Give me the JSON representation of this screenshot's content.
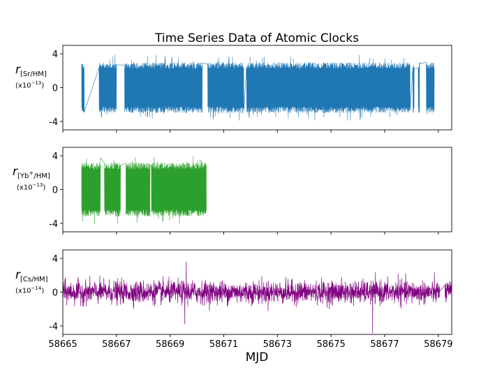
{
  "title": "Time Series Data of Atomic Clocks",
  "x_label": "MJD",
  "colors": {
    "sr": "#1f77b4",
    "yb": "#2ca02c",
    "cs": "#800080"
  },
  "panels": [
    {
      "id": "sr",
      "label_main": "r",
      "label_sub": "[Sr/HM]",
      "scale_base": "(x10",
      "scale_exp": "−13",
      "scale_close": ")"
    },
    {
      "id": "yb",
      "label_main": "r",
      "label_sub_a": "[Yb",
      "label_sub_sup": "+",
      "label_sub_b": "/HM]",
      "scale_base": "(x10",
      "scale_exp": "−13",
      "scale_close": ")"
    },
    {
      "id": "cs",
      "label_main": "r",
      "label_sub": "[Cs/HM]",
      "scale_base": "(x10",
      "scale_exp": "−14",
      "scale_close": ")"
    }
  ],
  "chart_data": [
    {
      "type": "line",
      "series": [
        {
          "color": "#1f77b4"
        }
      ],
      "xlim": [
        58665,
        58679.5
      ],
      "ylim": [
        -5,
        5
      ],
      "x_ticks": [
        58665,
        58667,
        58669,
        58671,
        58673,
        58675,
        58677,
        58679
      ],
      "y_ticks": [
        -4,
        0,
        4
      ],
      "y_tick_labels": [
        "-4",
        "0",
        "4"
      ],
      "amplitude": 3.0,
      "segments": [
        [
          58665.7,
          58665.8
        ],
        [
          58666.35,
          58667.0
        ],
        [
          58667.3,
          58670.2
        ],
        [
          58670.4,
          58671.75
        ],
        [
          58671.85,
          58677.95
        ],
        [
          58678.05,
          58678.1
        ],
        [
          58678.25,
          58678.3
        ],
        [
          58678.55,
          58678.85
        ]
      ]
    },
    {
      "type": "line",
      "series": [
        {
          "color": "#2ca02c"
        }
      ],
      "xlim": [
        58665,
        58679.5
      ],
      "ylim": [
        -5,
        5
      ],
      "x_ticks": [
        58665,
        58667,
        58669,
        58671,
        58673,
        58675,
        58677,
        58679
      ],
      "y_ticks": [
        -4,
        0,
        4
      ],
      "y_tick_labels": [
        "-4",
        "0",
        "4"
      ],
      "amplitude": 3.2,
      "segments": [
        [
          58665.7,
          58666.4
        ],
        [
          58666.55,
          58667.15
        ],
        [
          58667.35,
          58668.25
        ],
        [
          58668.3,
          58670.35
        ]
      ]
    },
    {
      "type": "line",
      "series": [
        {
          "color": "#800080"
        }
      ],
      "xlim": [
        58665,
        58679.5
      ],
      "ylim": [
        -5,
        5
      ],
      "x_ticks": [
        58665,
        58667,
        58669,
        58671,
        58673,
        58675,
        58677,
        58679
      ],
      "x_tick_labels": [
        "58665",
        "58667",
        "58669",
        "58671",
        "58673",
        "58675",
        "58677",
        "58679"
      ],
      "y_ticks": [
        -4,
        0,
        4
      ],
      "y_tick_labels": [
        "-4",
        "0",
        "4"
      ],
      "amplitude": 1.2,
      "segments": [
        [
          58665.0,
          58679.05
        ],
        [
          58679.25,
          58679.5
        ]
      ],
      "spikes": [
        [
          58669.6,
          3.6
        ],
        [
          58669.55,
          -3.8
        ],
        [
          58676.55,
          -4.9
        ],
        [
          58677.5,
          2.2
        ]
      ]
    }
  ]
}
